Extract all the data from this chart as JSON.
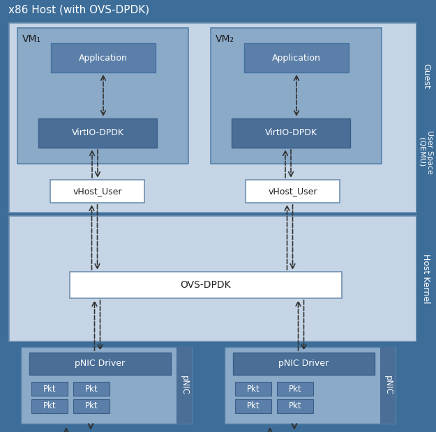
{
  "colors": {
    "title_bg": "#3d6e99",
    "outer_bg": "#3d6e99",
    "user_space_bg": "#c5d5e5",
    "host_kernel_bg": "#c5d5e5",
    "vm_box_bg": "#8aaac8",
    "app_box": "#5b7fa8",
    "virtio_box": "#4a6e96",
    "vhost_fill": "#ffffff",
    "vhost_edge": "#7090b0",
    "ovs_fill": "#ffffff",
    "ovs_edge": "#7090b0",
    "pnic_outer": "#8aaac8",
    "pnic_driver_box": "#4a6e96",
    "pnic_pkt_box": "#5b7fa8",
    "side_label_bg": "#3d6e99",
    "separator": "#3d6e99",
    "arrow_color": "#333333"
  },
  "labels": {
    "title": "x86 Host (with OVS-DPDK)",
    "vm1": "VM₁",
    "vm2": "VM₂",
    "application": "Application",
    "virtio": "VirtIO-DPDK",
    "vhost": "vHost_User",
    "ovs": "OVS-DPDK",
    "pnic_driver": "pNIC Driver",
    "pkt": "Pkt",
    "pnic": "pNIC",
    "guest": "Guest",
    "user_space": "User Space\n(QEMU)",
    "host_kernel": "Host Kernel"
  }
}
